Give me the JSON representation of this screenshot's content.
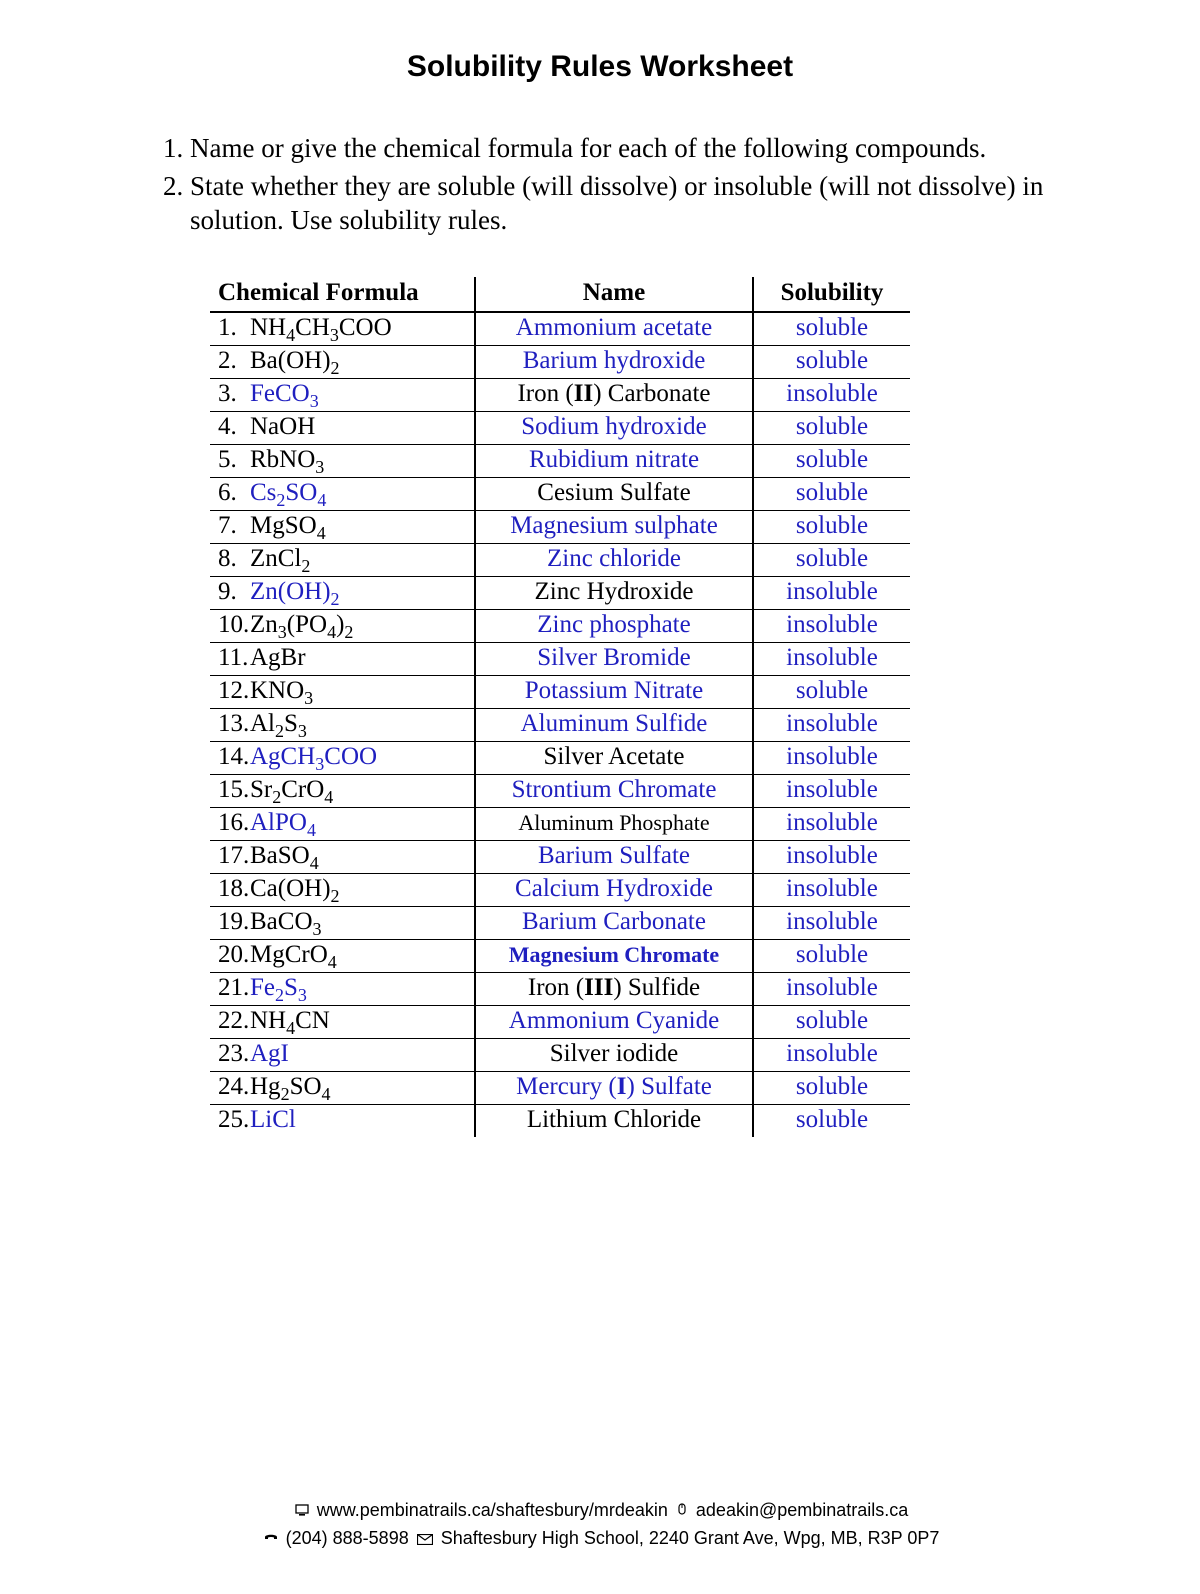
{
  "title": "Solubility Rules Worksheet",
  "instructions": [
    "Name or give the chemical formula for each of the following compounds.",
    "State whether they are soluble (will dissolve) or insoluble (will not dissolve) in solution.  Use solubility rules."
  ],
  "table": {
    "headers": [
      "Chemical Formula",
      "Name",
      "Solubility"
    ],
    "answer_color": "#1f1fbf",
    "rows": [
      {
        "n": "1.",
        "formula_html": "NH<span class='sub'>4</span>CH<span class='sub'>3</span>COO",
        "formula_link": false,
        "name": "Ammonium acetate",
        "name_link": true,
        "sol": "soluble"
      },
      {
        "n": "2.",
        "formula_html": "Ba(OH)<span class='sub'>2</span>",
        "formula_link": false,
        "name": "Barium hydroxide",
        "name_link": true,
        "sol": "soluble"
      },
      {
        "n": "3.",
        "formula_html": "FeCO<span class='sub'>3</span>",
        "formula_link": true,
        "name": "Iron (<b>II</b>) Carbonate",
        "name_link": false,
        "sol": "insoluble"
      },
      {
        "n": "4.",
        "formula_html": "NaOH",
        "formula_link": false,
        "name": "Sodium hydroxide",
        "name_link": true,
        "sol": "soluble"
      },
      {
        "n": "5.",
        "formula_html": "RbNO<span class='sub'>3</span>",
        "formula_link": false,
        "name": "Rubidium nitrate",
        "name_link": true,
        "sol": "soluble"
      },
      {
        "n": "6.",
        "formula_html": "Cs<span class='sub'>2</span>SO<span class='sub'>4</span>",
        "formula_link": true,
        "name": "Cesium Sulfate",
        "name_link": false,
        "sol": "soluble"
      },
      {
        "n": "7.",
        "formula_html": "MgSO<span class='sub'>4</span>",
        "formula_link": false,
        "name": "Magnesium sulphate",
        "name_link": true,
        "sol": "soluble"
      },
      {
        "n": "8.",
        "formula_html": "ZnCl<span class='sub'>2</span>",
        "formula_link": false,
        "name": "Zinc chloride",
        "name_link": true,
        "sol": "soluble"
      },
      {
        "n": "9.",
        "formula_html": "Zn(OH)<span class='sub'>2</span>",
        "formula_link": true,
        "name": "Zinc Hydroxide",
        "name_link": false,
        "sol": "insoluble"
      },
      {
        "n": "10.",
        "formula_html": "Zn<span class='sub'>3</span>(PO<span class='sub'>4</span>)<span class='sub'>2</span>",
        "formula_link": false,
        "name": "Zinc phosphate",
        "name_link": true,
        "sol": "insoluble"
      },
      {
        "n": "11.",
        "formula_html": "AgBr",
        "formula_link": false,
        "name": "Silver Bromide",
        "name_link": true,
        "sol": "insoluble"
      },
      {
        "n": "12.",
        "formula_html": "KNO<span class='sub'>3</span>",
        "formula_link": false,
        "name": "Potassium Nitrate",
        "name_link": true,
        "sol": "soluble"
      },
      {
        "n": "13.",
        "formula_html": "Al<span class='sub'>2</span>S<span class='sub'>3</span>",
        "formula_link": false,
        "name": "Aluminum Sulfide",
        "name_link": true,
        "sol": "insoluble"
      },
      {
        "n": "14.",
        "formula_html": "AgCH<span class='sub'>3</span>COO",
        "formula_link": true,
        "name": "Silver Acetate",
        "name_link": false,
        "sol": "insoluble"
      },
      {
        "n": "15.",
        "formula_html": "Sr<span class='sub'>2</span>CrO<span class='sub'>4</span>",
        "formula_link": false,
        "name": "Strontium Chromate",
        "name_link": true,
        "sol": "insoluble"
      },
      {
        "n": "16.",
        "formula_html": "AlPO<span class='sub'>4</span>",
        "formula_link": true,
        "name": "Aluminum Phosphate",
        "name_link": false,
        "name_small": true,
        "sol": "insoluble"
      },
      {
        "n": "17.",
        "formula_html": "BaSO<span class='sub'>4</span>",
        "formula_link": false,
        "name": "Barium Sulfate",
        "name_link": true,
        "sol": "insoluble"
      },
      {
        "n": "18.",
        "formula_html": "Ca(OH)<span class='sub'>2</span>",
        "formula_link": false,
        "name": "Calcium Hydroxide",
        "name_link": true,
        "sol": "insoluble"
      },
      {
        "n": "19.",
        "formula_html": "BaCO<span class='sub'>3</span>",
        "formula_link": false,
        "name": "Barium Carbonate",
        "name_link": true,
        "sol": "insoluble"
      },
      {
        "n": "20.",
        "formula_html": "MgCrO<span class='sub'>4</span>",
        "formula_link": false,
        "name": "Magnesium Chromate",
        "name_link": true,
        "name_boldblue": true,
        "sol": "soluble"
      },
      {
        "n": "21.",
        "formula_html": "Fe<span class='sub'>2</span>S<span class='sub'>3</span>",
        "formula_link": true,
        "name": "Iron (<b>III</b>) Sulfide",
        "name_link": false,
        "sol": "insoluble"
      },
      {
        "n": "22.",
        "formula_html": "NH<span class='sub'>4</span>CN",
        "formula_link": false,
        "name": "Ammonium Cyanide",
        "name_link": true,
        "sol": "soluble"
      },
      {
        "n": "23.",
        "formula_html": "AgI",
        "formula_link": true,
        "name": "Silver iodide",
        "name_link": false,
        "sol": "insoluble"
      },
      {
        "n": "24.",
        "formula_html": "Hg<span class='sub'>2</span>SO<span class='sub'>4</span>",
        "formula_link": false,
        "name": "Mercury (<b>I</b>) Sulfate",
        "name_link": true,
        "sol": "soluble"
      },
      {
        "n": "25.",
        "formula_html": "LiCl",
        "formula_link": true,
        "name": "Lithium Chloride",
        "name_link": false,
        "sol": "soluble"
      }
    ]
  },
  "footer": {
    "website": "www.pembinatrails.ca/shaftesbury/mrdeakin",
    "email": "adeakin@pembinatrails.ca",
    "phone": "(204) 888-5898",
    "address": "Shaftesbury High School, 2240 Grant Ave, Wpg, MB, R3P 0P7"
  }
}
